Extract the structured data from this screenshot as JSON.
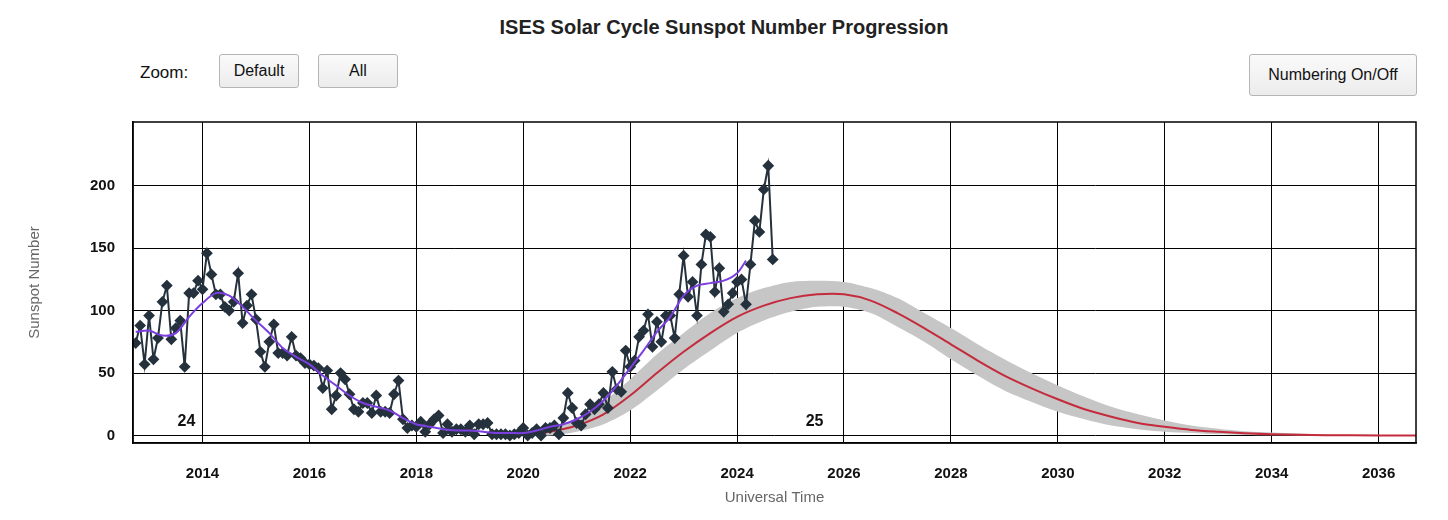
{
  "chart_data": {
    "type": "line",
    "title": "ISES Solar Cycle Sunspot Number Progression",
    "x_label": "Universal Time",
    "y_label": "Sunspot Number",
    "xlim": [
      2012.7,
      2036.7
    ],
    "ylim": [
      -6,
      251
    ],
    "xticks": [
      2014,
      2016,
      2018,
      2020,
      2022,
      2024,
      2026,
      2028,
      2030,
      2032,
      2034,
      2036
    ],
    "yticks": [
      0,
      50,
      100,
      150,
      200
    ],
    "grid": true,
    "annotations": [
      {
        "text": "24",
        "x": 2013.7,
        "y": 11
      },
      {
        "text": "25",
        "x": 2025.45,
        "y": 11
      }
    ],
    "series": [
      {
        "type": "line",
        "color": "#7b3fe0",
        "marker": "none",
        "x": [
          2012.75,
          2013,
          2013.25,
          2013.5,
          2013.75,
          2014,
          2014.25,
          2014.5,
          2014.75,
          2015,
          2015.25,
          2015.5,
          2015.75,
          2016,
          2016.25,
          2016.5,
          2016.75,
          2017,
          2017.25,
          2017.5,
          2017.75,
          2018,
          2018.25,
          2018.5,
          2018.75,
          2019,
          2019.25,
          2019.5,
          2019.75,
          2020,
          2020.25,
          2020.5,
          2020.75,
          2021,
          2021.25,
          2021.5,
          2021.75,
          2022,
          2022.25,
          2022.5,
          2022.75,
          2023,
          2023.25,
          2023.5,
          2023.75,
          2024,
          2024.167
        ],
        "values": [
          83,
          84,
          80,
          82,
          95,
          106,
          114,
          112,
          103,
          92,
          82,
          70,
          63,
          57,
          48,
          40,
          32,
          26,
          23,
          20,
          14,
          9,
          7,
          5,
          4,
          4,
          3,
          2,
          2,
          2,
          4,
          7,
          9,
          13,
          19,
          28,
          40,
          54,
          68,
          83,
          95,
          112,
          120,
          122,
          124,
          130,
          140
        ]
      },
      {
        "type": "line",
        "color": "#25323d",
        "marker": "diamond",
        "x": [
          2012.75,
          2012.833,
          2012.917,
          2013,
          2013.083,
          2013.167,
          2013.25,
          2013.333,
          2013.417,
          2013.5,
          2013.583,
          2013.667,
          2013.75,
          2013.833,
          2013.917,
          2014,
          2014.083,
          2014.167,
          2014.25,
          2014.333,
          2014.417,
          2014.5,
          2014.583,
          2014.667,
          2014.75,
          2014.833,
          2014.917,
          2015,
          2015.083,
          2015.167,
          2015.25,
          2015.333,
          2015.417,
          2015.5,
          2015.583,
          2015.667,
          2015.75,
          2015.833,
          2015.917,
          2016,
          2016.083,
          2016.167,
          2016.25,
          2016.333,
          2016.417,
          2016.5,
          2016.583,
          2016.667,
          2016.75,
          2016.833,
          2016.917,
          2017,
          2017.083,
          2017.167,
          2017.25,
          2017.333,
          2017.417,
          2017.5,
          2017.583,
          2017.667,
          2017.75,
          2017.833,
          2017.917,
          2018,
          2018.083,
          2018.167,
          2018.25,
          2018.333,
          2018.417,
          2018.5,
          2018.583,
          2018.667,
          2018.75,
          2018.833,
          2018.917,
          2019,
          2019.083,
          2019.167,
          2019.25,
          2019.333,
          2019.417,
          2019.5,
          2019.583,
          2019.667,
          2019.75,
          2019.833,
          2019.917,
          2020,
          2020.083,
          2020.167,
          2020.25,
          2020.333,
          2020.417,
          2020.5,
          2020.583,
          2020.667,
          2020.75,
          2020.833,
          2020.917,
          2021,
          2021.083,
          2021.167,
          2021.25,
          2021.333,
          2021.417,
          2021.5,
          2021.583,
          2021.667,
          2021.75,
          2021.833,
          2021.917,
          2022,
          2022.083,
          2022.167,
          2022.25,
          2022.333,
          2022.417,
          2022.5,
          2022.583,
          2022.667,
          2022.75,
          2022.833,
          2022.917,
          2023,
          2023.083,
          2023.167,
          2023.25,
          2023.333,
          2023.417,
          2023.5,
          2023.583,
          2023.667,
          2023.75,
          2023.833,
          2023.917,
          2024,
          2024.083,
          2024.167,
          2024.25,
          2024.333,
          2024.417,
          2024.5,
          2024.583,
          2024.667
        ],
        "values": [
          74,
          88,
          57,
          96,
          61,
          78,
          107,
          120,
          77,
          86,
          92,
          55,
          114,
          114,
          124,
          117,
          146,
          129,
          113,
          113,
          103,
          100,
          107,
          130,
          90,
          104,
          113,
          93,
          67,
          55,
          75,
          89,
          66,
          66,
          64,
          79,
          64,
          62,
          58,
          57,
          56,
          54,
          38,
          52,
          21,
          32,
          50,
          45,
          33,
          21,
          19,
          26,
          26,
          18,
          32,
          19,
          19,
          18,
          33,
          44,
          13,
          6,
          8,
          7,
          11,
          3,
          9,
          13,
          16,
          2,
          9,
          3,
          5,
          5,
          3,
          8,
          1,
          9,
          9,
          10,
          1,
          1,
          1,
          1,
          0,
          1,
          2,
          6,
          0,
          2,
          5,
          0,
          6,
          6,
          8,
          1,
          14,
          34,
          22,
          10,
          8,
          17,
          25,
          21,
          25,
          34,
          22,
          51,
          37,
          35,
          68,
          55,
          60,
          79,
          84,
          97,
          71,
          91,
          75,
          96,
          96,
          78,
          113,
          144,
          111,
          123,
          96,
          137,
          161,
          159,
          115,
          134,
          99,
          105,
          114,
          123,
          125,
          105,
          137,
          172,
          163,
          197,
          216,
          141
        ]
      },
      {
        "type": "line",
        "color": "#c42b3d",
        "marker": "none",
        "x": [
          2019.9,
          2020.5,
          2021,
          2021.5,
          2022,
          2022.5,
          2023,
          2023.5,
          2024,
          2024.5,
          2025,
          2025.5,
          2026,
          2026.5,
          2027,
          2027.5,
          2028,
          2028.5,
          2029,
          2029.5,
          2030,
          2030.5,
          2031,
          2031.5,
          2032,
          2032.5,
          2033,
          2033.5,
          2034,
          2035,
          2036,
          2036.7
        ],
        "values": [
          0,
          3,
          8,
          17,
          32,
          50,
          67,
          82,
          95,
          104,
          110,
          113,
          113,
          108,
          98,
          86,
          73,
          60,
          48,
          38,
          29,
          21,
          15,
          10,
          7,
          4.5,
          3,
          1.8,
          1,
          0.3,
          0.1,
          0
        ]
      },
      {
        "type": "band",
        "color": "#c6c6c6",
        "x": [
          2019.9,
          2020.5,
          2021,
          2021.5,
          2022,
          2022.5,
          2023,
          2023.5,
          2024,
          2024.5,
          2025,
          2025.5,
          2026,
          2026.5,
          2027,
          2027.5,
          2028,
          2028.5,
          2029,
          2029.5,
          2030,
          2030.5,
          2031,
          2031.5,
          2032,
          2032.5,
          2033,
          2033.5,
          2034,
          2035,
          2036,
          2036.7
        ],
        "lower": [
          0,
          0,
          3,
          9,
          20,
          36,
          53,
          68,
          82,
          92,
          99,
          103,
          103,
          98,
          87,
          75,
          61,
          48,
          36,
          27,
          19,
          13,
          8,
          5,
          3,
          2,
          1,
          0.5,
          0.2,
          0,
          0,
          0
        ],
        "upper": [
          0,
          5,
          14,
          27,
          45,
          65,
          82,
          98,
          110,
          118,
          123,
          124,
          123,
          118,
          110,
          98,
          86,
          73,
          61,
          50,
          40,
          31,
          23,
          17,
          12,
          8,
          5.5,
          3.5,
          2.5,
          1,
          0.5,
          0.3
        ]
      }
    ]
  },
  "controls": {
    "zoom_label": "Zoom:",
    "zoom_buttons": [
      "Default",
      "All"
    ],
    "toggle_button": "Numbering On/Off"
  }
}
